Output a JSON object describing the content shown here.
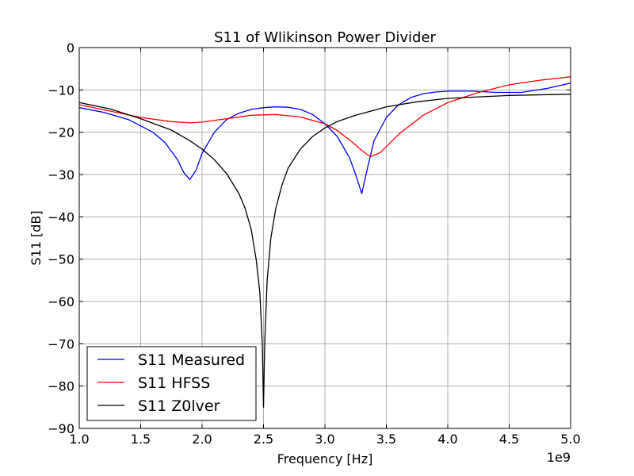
{
  "chart_data": {
    "type": "line",
    "title": "S11 of Wlikinson Power Divider",
    "xlabel": "Frequency [Hz]",
    "ylabel": "S11 [dB]",
    "x_offset_label": "1e9",
    "xlim": [
      1.0,
      5.0
    ],
    "ylim": [
      -90,
      0
    ],
    "x_ticks": [
      1.0,
      1.5,
      2.0,
      2.5,
      3.0,
      3.5,
      4.0,
      4.5,
      5.0
    ],
    "x_tick_labels": [
      "1.0",
      "1.5",
      "2.0",
      "2.5",
      "3.0",
      "3.5",
      "4.0",
      "4.5",
      "5.0"
    ],
    "y_ticks": [
      0,
      -10,
      -20,
      -30,
      -40,
      -50,
      -60,
      -70,
      -80,
      -90
    ],
    "y_tick_labels": [
      "0",
      "−10",
      "−20",
      "−30",
      "−40",
      "−50",
      "−60",
      "−70",
      "−80",
      "−90"
    ],
    "grid": true,
    "legend_position": "lower-left",
    "series": [
      {
        "name": "S11 Measured",
        "color": "#0000ff",
        "x": [
          1.0,
          1.2,
          1.4,
          1.6,
          1.7,
          1.8,
          1.85,
          1.9,
          1.95,
          2.0,
          2.1,
          2.2,
          2.3,
          2.4,
          2.5,
          2.6,
          2.7,
          2.8,
          2.9,
          3.0,
          3.1,
          3.2,
          3.25,
          3.3,
          3.35,
          3.4,
          3.5,
          3.6,
          3.7,
          3.8,
          3.9,
          4.0,
          4.2,
          4.4,
          4.6,
          4.8,
          5.0
        ],
        "y": [
          -14.2,
          -15.3,
          -17.0,
          -20.0,
          -22.5,
          -26.5,
          -29.5,
          -31.2,
          -29.0,
          -25.0,
          -20.0,
          -17.0,
          -15.5,
          -14.6,
          -14.2,
          -14.0,
          -14.1,
          -14.6,
          -15.8,
          -18.0,
          -21.0,
          -26.0,
          -30.0,
          -34.5,
          -28.0,
          -22.0,
          -16.5,
          -13.5,
          -11.8,
          -10.9,
          -10.5,
          -10.3,
          -10.3,
          -10.6,
          -10.6,
          -9.7,
          -8.4
        ]
      },
      {
        "name": "S11 HFSS",
        "color": "#ff0000",
        "x": [
          1.0,
          1.25,
          1.5,
          1.75,
          1.9,
          2.0,
          2.2,
          2.4,
          2.6,
          2.8,
          3.0,
          3.1,
          3.2,
          3.3,
          3.37,
          3.45,
          3.6,
          3.8,
          4.0,
          4.25,
          4.5,
          4.75,
          5.0
        ],
        "y": [
          -13.5,
          -15.0,
          -16.5,
          -17.5,
          -17.8,
          -17.6,
          -16.8,
          -16.0,
          -15.8,
          -16.4,
          -18.0,
          -19.6,
          -21.8,
          -24.3,
          -25.8,
          -24.8,
          -20.5,
          -16.0,
          -13.0,
          -10.6,
          -8.8,
          -7.7,
          -6.9
        ]
      },
      {
        "name": "S11 Z0lver",
        "color": "#000000",
        "x": [
          1.0,
          1.25,
          1.5,
          1.75,
          1.9,
          2.0,
          2.1,
          2.2,
          2.3,
          2.35,
          2.4,
          2.44,
          2.47,
          2.49,
          2.5,
          2.51,
          2.53,
          2.56,
          2.6,
          2.65,
          2.7,
          2.8,
          2.9,
          3.0,
          3.1,
          3.25,
          3.5,
          3.75,
          4.0,
          4.5,
          5.0
        ],
        "y": [
          -13.0,
          -14.5,
          -16.8,
          -19.5,
          -22.0,
          -24.0,
          -26.5,
          -29.8,
          -34.5,
          -38.0,
          -43.0,
          -50.0,
          -58.0,
          -70.0,
          -85.0,
          -70.0,
          -55.0,
          -45.0,
          -38.0,
          -32.5,
          -28.5,
          -24.0,
          -21.0,
          -19.0,
          -17.5,
          -16.0,
          -14.0,
          -12.8,
          -12.0,
          -11.3,
          -11.0
        ]
      }
    ]
  }
}
